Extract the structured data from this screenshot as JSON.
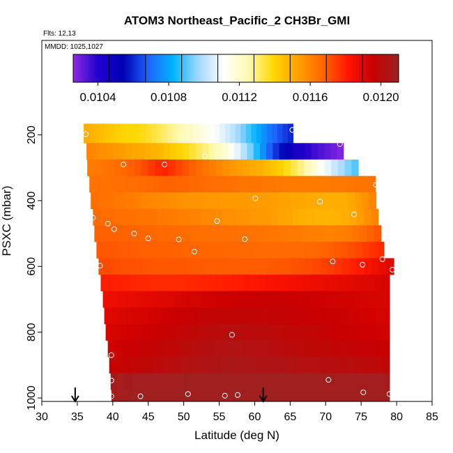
{
  "chart_data": {
    "type": "heatmap",
    "title": "ATOM3 Northeast_Pacific_2 CH3Br_GMI",
    "flights_label": "Flts: 12,13",
    "dates_label": "MMDD: 1025,1027",
    "xlabel": "Latitude (deg N)",
    "ylabel": "PSXC (mbar)",
    "xlim": [
      30,
      85
    ],
    "ylim": [
      1000,
      0
    ],
    "y_reversed": true,
    "xticks": [
      "30",
      "35",
      "40",
      "45",
      "50",
      "55",
      "60",
      "65",
      "70",
      "75",
      "80",
      "85"
    ],
    "yticks": [
      "200",
      "400",
      "600",
      "800",
      "1000"
    ],
    "colorbar": {
      "range": [
        0.01026,
        0.0121
      ],
      "tick_labels": [
        "0.0104",
        "0.0108",
        "0.0112",
        "0.0116",
        "0.0120"
      ],
      "tick_values": [
        0.0104,
        0.0108,
        0.0112,
        0.0116,
        0.012
      ],
      "colors": [
        "#8a2be2",
        "#2200cc",
        "#0000b4",
        "#1e64ff",
        "#00b4ff",
        "#9fd8ff",
        "#ffffff",
        "#fff9b0",
        "#ffd700",
        "#ffa000",
        "#ff6400",
        "#ff1400",
        "#c80000",
        "#9a2424"
      ]
    },
    "rows": [
      {
        "p": 200,
        "lat_start": 35.9,
        "lat_end": 65.4,
        "values": [
          0.0115,
          0.01145,
          0.0114,
          0.01138,
          0.01132,
          0.01125,
          0.01118,
          0.0111,
          0.011,
          0.01085,
          0.0107,
          0.0106
        ]
      },
      {
        "p": 250,
        "lat_start": 36.3,
        "lat_end": 72.5,
        "values": [
          0.0116,
          0.01156,
          0.01152,
          0.01148,
          0.0114,
          0.0113,
          0.01118,
          0.01095,
          0.01065,
          0.01045,
          0.01035,
          0.01028
        ]
      },
      {
        "p": 300,
        "lat_start": 36.4,
        "lat_end": 74.6,
        "values": [
          0.01162,
          0.01165,
          0.0117,
          0.0118,
          0.0117,
          0.01162,
          0.01155,
          0.0115,
          0.0114,
          0.01125,
          0.01105,
          0.0109
        ]
      },
      {
        "p": 350,
        "lat_start": 36.7,
        "lat_end": 77.0,
        "values": [
          0.01164,
          0.01165,
          0.01166,
          0.01168,
          0.01166,
          0.01165,
          0.01164,
          0.01163,
          0.01162,
          0.01162,
          0.01163,
          0.01164
        ]
      },
      {
        "p": 400,
        "lat_start": 36.9,
        "lat_end": 77.1,
        "values": [
          0.01165,
          0.01163,
          0.0116,
          0.01158,
          0.01156,
          0.01155,
          0.01155,
          0.01154,
          0.01152,
          0.0115,
          0.0115,
          0.0116
        ]
      },
      {
        "p": 450,
        "lat_start": 37.2,
        "lat_end": 77.4,
        "values": [
          0.01166,
          0.01165,
          0.01164,
          0.01162,
          0.0116,
          0.01158,
          0.01156,
          0.01154,
          0.0115,
          0.01148,
          0.0115,
          0.0116
        ]
      },
      {
        "p": 500,
        "lat_start": 37.4,
        "lat_end": 77.8,
        "values": [
          0.01168,
          0.01168,
          0.01167,
          0.01166,
          0.01165,
          0.01165,
          0.01164,
          0.01163,
          0.01162,
          0.0116,
          0.01162,
          0.0117
        ]
      },
      {
        "p": 550,
        "lat_start": 37.7,
        "lat_end": 78.2,
        "values": [
          0.0117,
          0.01169,
          0.01168,
          0.01168,
          0.01167,
          0.01167,
          0.01166,
          0.01166,
          0.01166,
          0.01168,
          0.01172,
          0.01178
        ]
      },
      {
        "p": 600,
        "lat_start": 38.0,
        "lat_end": 79.6,
        "values": [
          0.01172,
          0.01171,
          0.0117,
          0.0117,
          0.01169,
          0.01169,
          0.01169,
          0.0117,
          0.01172,
          0.01176,
          0.01182,
          0.0119
        ]
      },
      {
        "p": 650,
        "lat_start": 38.3,
        "lat_end": 79.0,
        "values": [
          0.0118,
          0.01179,
          0.01178,
          0.01178,
          0.01179,
          0.0118,
          0.01182,
          0.01184,
          0.01186,
          0.01188,
          0.0119,
          0.01192
        ]
      },
      {
        "p": 700,
        "lat_start": 38.6,
        "lat_end": 79.0,
        "values": [
          0.01186,
          0.01188,
          0.0119,
          0.01192,
          0.01194,
          0.01195,
          0.01196,
          0.01196,
          0.01195,
          0.01194,
          0.01193,
          0.01192
        ]
      },
      {
        "p": 750,
        "lat_start": 38.8,
        "lat_end": 79.0,
        "values": [
          0.0119,
          0.01192,
          0.01194,
          0.01196,
          0.01198,
          0.01198,
          0.01198,
          0.01197,
          0.01196,
          0.01195,
          0.01194,
          0.01193
        ]
      },
      {
        "p": 800,
        "lat_start": 39.0,
        "lat_end": 79.0,
        "values": [
          0.01192,
          0.01194,
          0.01196,
          0.01198,
          0.012,
          0.01201,
          0.012,
          0.01199,
          0.01198,
          0.01196,
          0.01195,
          0.01194
        ]
      },
      {
        "p": 850,
        "lat_start": 39.3,
        "lat_end": 79.0,
        "values": [
          0.01194,
          0.01196,
          0.01198,
          0.012,
          0.01202,
          0.01203,
          0.01202,
          0.012,
          0.01199,
          0.01198,
          0.01197,
          0.01196
        ]
      },
      {
        "p": 900,
        "lat_start": 39.5,
        "lat_end": 79.0,
        "values": [
          0.01196,
          0.01198,
          0.012,
          0.01202,
          0.01204,
          0.01205,
          0.01204,
          0.01203,
          0.01202,
          0.01201,
          0.012,
          0.01199
        ]
      },
      {
        "p": 950,
        "lat_start": 39.7,
        "lat_end": 79.0,
        "values": [
          0.01206,
          0.01207,
          0.01207,
          0.01208,
          0.01208,
          0.01208,
          0.01208,
          0.01208,
          0.01208,
          0.01207,
          0.01207,
          0.01207
        ]
      },
      {
        "p": 1000,
        "lat_start": 39.8,
        "lat_end": 79.0,
        "values": [
          0.01207,
          0.01208,
          0.01208,
          0.01208,
          0.01208,
          0.01208,
          0.01208,
          0.01208,
          0.01208,
          0.01208,
          0.01208,
          0.01208
        ]
      }
    ],
    "samples": [
      {
        "lat": 36.2,
        "p": 198
      },
      {
        "lat": 65.3,
        "p": 185
      },
      {
        "lat": 72.0,
        "p": 228
      },
      {
        "lat": 53.0,
        "p": 265
      },
      {
        "lat": 36.0,
        "p": 290
      },
      {
        "lat": 41.5,
        "p": 290
      },
      {
        "lat": 47.3,
        "p": 290
      },
      {
        "lat": 77.1,
        "p": 352
      },
      {
        "lat": 60.1,
        "p": 393
      },
      {
        "lat": 69.2,
        "p": 403
      },
      {
        "lat": 74.0,
        "p": 442
      },
      {
        "lat": 37.2,
        "p": 452
      },
      {
        "lat": 39.3,
        "p": 470
      },
      {
        "lat": 40.2,
        "p": 487
      },
      {
        "lat": 54.7,
        "p": 462
      },
      {
        "lat": 43.0,
        "p": 500
      },
      {
        "lat": 45.0,
        "p": 515
      },
      {
        "lat": 49.3,
        "p": 518
      },
      {
        "lat": 58.6,
        "p": 517
      },
      {
        "lat": 51.5,
        "p": 555
      },
      {
        "lat": 71.0,
        "p": 585
      },
      {
        "lat": 75.2,
        "p": 595
      },
      {
        "lat": 78.0,
        "p": 578
      },
      {
        "lat": 38.2,
        "p": 598
      },
      {
        "lat": 79.4,
        "p": 610
      },
      {
        "lat": 56.8,
        "p": 808
      },
      {
        "lat": 39.8,
        "p": 870
      },
      {
        "lat": 39.8,
        "p": 947
      },
      {
        "lat": 70.4,
        "p": 945
      },
      {
        "lat": 75.3,
        "p": 983
      },
      {
        "lat": 79.0,
        "p": 988
      },
      {
        "lat": 50.6,
        "p": 988
      },
      {
        "lat": 57.6,
        "p": 991
      },
      {
        "lat": 55.8,
        "p": 993
      },
      {
        "lat": 43.9,
        "p": 995
      },
      {
        "lat": 39.8,
        "p": 995
      }
    ],
    "arrows": [
      {
        "lat": 34.7
      },
      {
        "lat": 61.2
      }
    ]
  }
}
